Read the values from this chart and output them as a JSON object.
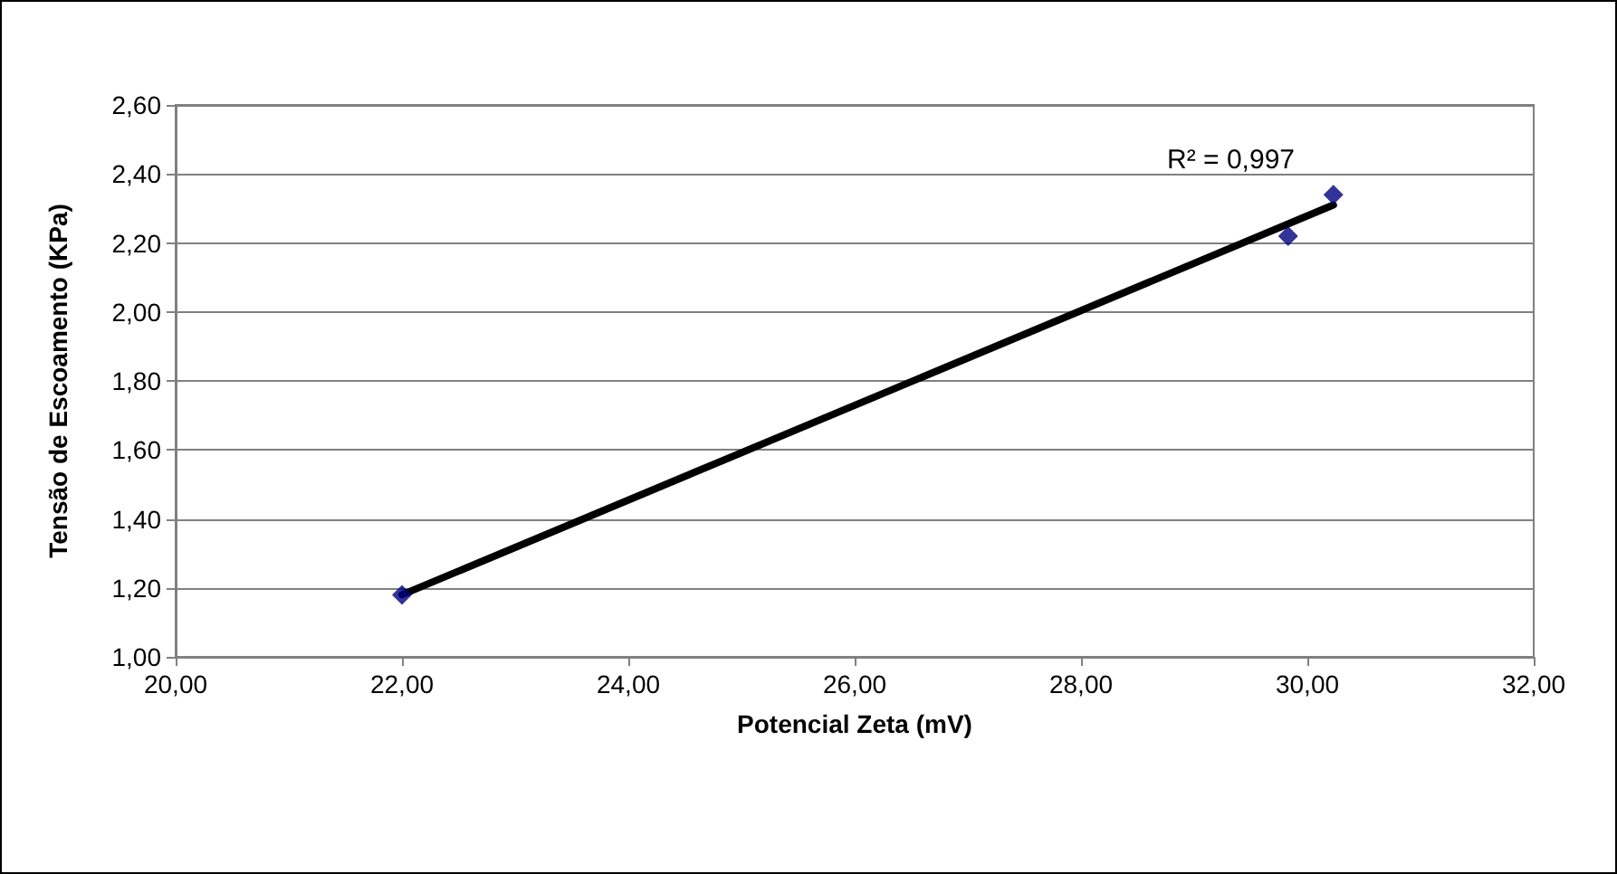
{
  "chart_data": {
    "type": "scatter",
    "xlabel": "Potencial Zeta (mV)",
    "ylabel": "Tensão de Escoamento (KPa)",
    "series": [
      {
        "color": "#000080",
        "x": [
          22.0,
          29.83,
          30.23
        ],
        "values": [
          1.18,
          2.22,
          2.34
        ],
        "marker": "diamond"
      },
      {
        "type": "line",
        "color": "#000000",
        "x": [
          22.0,
          30.23
        ],
        "values": [
          1.18,
          2.31
        ],
        "marker": "none"
      }
    ],
    "annotations": [
      "R² = 0,997"
    ],
    "xlim": [
      20,
      32
    ],
    "xticks": [
      {
        "value": 20,
        "label": "20,00"
      },
      {
        "value": 22,
        "label": "22,00"
      },
      {
        "value": 24,
        "label": "24,00"
      },
      {
        "value": 26,
        "label": "26,00"
      },
      {
        "value": 28,
        "label": "28,00"
      },
      {
        "value": 30,
        "label": "30,00"
      },
      {
        "value": 32,
        "label": "32,00"
      }
    ],
    "ylim": [
      1,
      2.6
    ],
    "yticks": [
      {
        "value": 1,
        "label": "1,00"
      },
      {
        "value": 1.2,
        "label": "1,20"
      },
      {
        "value": 1.4,
        "label": "1,40"
      },
      {
        "value": 1.6,
        "label": "1,60"
      },
      {
        "value": 1.8,
        "label": "1,80"
      },
      {
        "value": 2,
        "label": "2,00"
      },
      {
        "value": 2.2,
        "label": "2,20"
      },
      {
        "value": 2.4,
        "label": "2,40"
      },
      {
        "value": 2.6,
        "label": "2,60"
      }
    ],
    "grid": "y"
  }
}
